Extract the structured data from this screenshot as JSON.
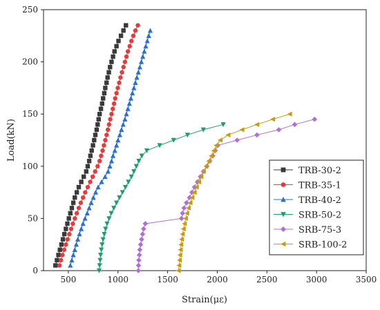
{
  "chart_data": {
    "type": "scatter",
    "xlabel": "Strain(με)",
    "ylabel": "Load(kN)",
    "xlim": [
      250,
      3500
    ],
    "ylim": [
      0,
      250
    ],
    "xticks": [
      "500",
      "1000",
      "1500",
      "2000",
      "2500",
      "3000",
      "3500"
    ],
    "yticks": [
      "0",
      "50",
      "100",
      "150",
      "200",
      "250"
    ],
    "grid": false,
    "legend_position": "bottom-right",
    "series": [
      {
        "name": "TRB-30-2",
        "color": "#3a3a3a",
        "marker": "square",
        "points": [
          [
            370,
            5
          ],
          [
            385,
            10
          ],
          [
            400,
            15
          ],
          [
            415,
            20
          ],
          [
            430,
            25
          ],
          [
            445,
            30
          ],
          [
            460,
            35
          ],
          [
            475,
            40
          ],
          [
            490,
            45
          ],
          [
            505,
            50
          ],
          [
            520,
            55
          ],
          [
            535,
            60
          ],
          [
            550,
            65
          ],
          [
            565,
            70
          ],
          [
            585,
            75
          ],
          [
            605,
            80
          ],
          [
            630,
            85
          ],
          [
            655,
            90
          ],
          [
            680,
            95
          ],
          [
            695,
            100
          ],
          [
            710,
            105
          ],
          [
            722,
            110
          ],
          [
            735,
            115
          ],
          [
            748,
            120
          ],
          [
            760,
            125
          ],
          [
            772,
            130
          ],
          [
            785,
            135
          ],
          [
            795,
            140
          ],
          [
            805,
            145
          ],
          [
            815,
            150
          ],
          [
            828,
            155
          ],
          [
            840,
            160
          ],
          [
            850,
            165
          ],
          [
            862,
            170
          ],
          [
            872,
            175
          ],
          [
            885,
            180
          ],
          [
            895,
            185
          ],
          [
            908,
            190
          ],
          [
            920,
            195
          ],
          [
            935,
            200
          ],
          [
            950,
            205
          ],
          [
            965,
            210
          ],
          [
            985,
            215
          ],
          [
            1005,
            220
          ],
          [
            1030,
            225
          ],
          [
            1055,
            230
          ],
          [
            1080,
            235
          ]
        ]
      },
      {
        "name": "TRB-35-1",
        "color": "#e83a3a",
        "marker": "circle",
        "points": [
          [
            410,
            5
          ],
          [
            425,
            10
          ],
          [
            440,
            15
          ],
          [
            458,
            20
          ],
          [
            475,
            25
          ],
          [
            492,
            30
          ],
          [
            510,
            35
          ],
          [
            528,
            40
          ],
          [
            545,
            45
          ],
          [
            565,
            50
          ],
          [
            585,
            55
          ],
          [
            605,
            60
          ],
          [
            625,
            65
          ],
          [
            648,
            70
          ],
          [
            670,
            75
          ],
          [
            695,
            80
          ],
          [
            720,
            85
          ],
          [
            745,
            90
          ],
          [
            770,
            95
          ],
          [
            795,
            100
          ],
          [
            815,
            105
          ],
          [
            830,
            110
          ],
          [
            845,
            115
          ],
          [
            858,
            120
          ],
          [
            872,
            125
          ],
          [
            885,
            130
          ],
          [
            898,
            135
          ],
          [
            910,
            140
          ],
          [
            922,
            145
          ],
          [
            935,
            150
          ],
          [
            948,
            155
          ],
          [
            960,
            160
          ],
          [
            972,
            165
          ],
          [
            985,
            170
          ],
          [
            998,
            175
          ],
          [
            1012,
            180
          ],
          [
            1025,
            185
          ],
          [
            1040,
            190
          ],
          [
            1055,
            195
          ],
          [
            1070,
            200
          ],
          [
            1085,
            205
          ],
          [
            1100,
            210
          ],
          [
            1118,
            215
          ],
          [
            1135,
            220
          ],
          [
            1155,
            225
          ],
          [
            1175,
            230
          ],
          [
            1200,
            235
          ]
        ]
      },
      {
        "name": "TRB-40-2",
        "color": "#2a6fd1",
        "marker": "triangle-up",
        "points": [
          [
            520,
            5
          ],
          [
            535,
            10
          ],
          [
            550,
            15
          ],
          [
            565,
            20
          ],
          [
            580,
            25
          ],
          [
            595,
            30
          ],
          [
            612,
            35
          ],
          [
            630,
            40
          ],
          [
            648,
            45
          ],
          [
            668,
            50
          ],
          [
            690,
            55
          ],
          [
            710,
            60
          ],
          [
            730,
            65
          ],
          [
            752,
            70
          ],
          [
            775,
            75
          ],
          [
            800,
            80
          ],
          [
            835,
            85
          ],
          [
            870,
            90
          ],
          [
            900,
            95
          ],
          [
            918,
            100
          ],
          [
            935,
            105
          ],
          [
            950,
            110
          ],
          [
            968,
            115
          ],
          [
            985,
            120
          ],
          [
            1000,
            125
          ],
          [
            1018,
            130
          ],
          [
            1035,
            135
          ],
          [
            1052,
            140
          ],
          [
            1070,
            145
          ],
          [
            1085,
            150
          ],
          [
            1100,
            155
          ],
          [
            1115,
            160
          ],
          [
            1130,
            165
          ],
          [
            1145,
            170
          ],
          [
            1160,
            175
          ],
          [
            1175,
            180
          ],
          [
            1190,
            185
          ],
          [
            1205,
            190
          ],
          [
            1220,
            195
          ],
          [
            1235,
            200
          ],
          [
            1250,
            205
          ],
          [
            1265,
            210
          ],
          [
            1280,
            215
          ],
          [
            1295,
            220
          ],
          [
            1310,
            225
          ],
          [
            1325,
            230
          ]
        ]
      },
      {
        "name": "SRB-50-2",
        "color": "#1f9e6b",
        "marker": "triangle-down",
        "points": [
          [
            810,
            0
          ],
          [
            815,
            5
          ],
          [
            820,
            10
          ],
          [
            825,
            15
          ],
          [
            832,
            20
          ],
          [
            840,
            25
          ],
          [
            850,
            30
          ],
          [
            862,
            35
          ],
          [
            875,
            40
          ],
          [
            890,
            45
          ],
          [
            910,
            50
          ],
          [
            932,
            55
          ],
          [
            958,
            60
          ],
          [
            985,
            65
          ],
          [
            1015,
            70
          ],
          [
            1045,
            75
          ],
          [
            1075,
            80
          ],
          [
            1105,
            85
          ],
          [
            1135,
            90
          ],
          [
            1160,
            95
          ],
          [
            1185,
            100
          ],
          [
            1210,
            105
          ],
          [
            1240,
            110
          ],
          [
            1290,
            115
          ],
          [
            1420,
            120
          ],
          [
            1560,
            125
          ],
          [
            1700,
            130
          ],
          [
            1860,
            135
          ],
          [
            2060,
            140
          ]
        ]
      },
      {
        "name": "SRB-75-3",
        "color": "#b06fd8",
        "marker": "diamond",
        "points": [
          [
            1205,
            0
          ],
          [
            1207,
            5
          ],
          [
            1210,
            10
          ],
          [
            1215,
            15
          ],
          [
            1220,
            20
          ],
          [
            1228,
            25
          ],
          [
            1238,
            30
          ],
          [
            1248,
            35
          ],
          [
            1258,
            40
          ],
          [
            1275,
            45
          ],
          [
            1640,
            50
          ],
          [
            1650,
            55
          ],
          [
            1665,
            60
          ],
          [
            1690,
            65
          ],
          [
            1720,
            70
          ],
          [
            1745,
            75
          ],
          [
            1770,
            80
          ],
          [
            1800,
            85
          ],
          [
            1830,
            90
          ],
          [
            1860,
            95
          ],
          [
            1895,
            100
          ],
          [
            1925,
            105
          ],
          [
            1955,
            110
          ],
          [
            1980,
            115
          ],
          [
            2005,
            120
          ],
          [
            2200,
            125
          ],
          [
            2400,
            130
          ],
          [
            2620,
            135
          ],
          [
            2780,
            140
          ],
          [
            2980,
            145
          ]
        ]
      },
      {
        "name": "SRB-100-2",
        "color": "#c99a0a",
        "marker": "triangle-left",
        "points": [
          [
            1610,
            0
          ],
          [
            1615,
            5
          ],
          [
            1620,
            10
          ],
          [
            1625,
            15
          ],
          [
            1630,
            20
          ],
          [
            1635,
            25
          ],
          [
            1642,
            30
          ],
          [
            1650,
            35
          ],
          [
            1660,
            40
          ],
          [
            1670,
            45
          ],
          [
            1682,
            50
          ],
          [
            1695,
            55
          ],
          [
            1710,
            60
          ],
          [
            1728,
            65
          ],
          [
            1748,
            70
          ],
          [
            1770,
            75
          ],
          [
            1792,
            80
          ],
          [
            1815,
            85
          ],
          [
            1838,
            90
          ],
          [
            1862,
            95
          ],
          [
            1888,
            100
          ],
          [
            1915,
            105
          ],
          [
            1940,
            110
          ],
          [
            1965,
            115
          ],
          [
            1990,
            120
          ],
          [
            2030,
            125
          ],
          [
            2110,
            130
          ],
          [
            2250,
            135
          ],
          [
            2400,
            140
          ],
          [
            2560,
            145
          ],
          [
            2730,
            150
          ]
        ]
      }
    ]
  }
}
